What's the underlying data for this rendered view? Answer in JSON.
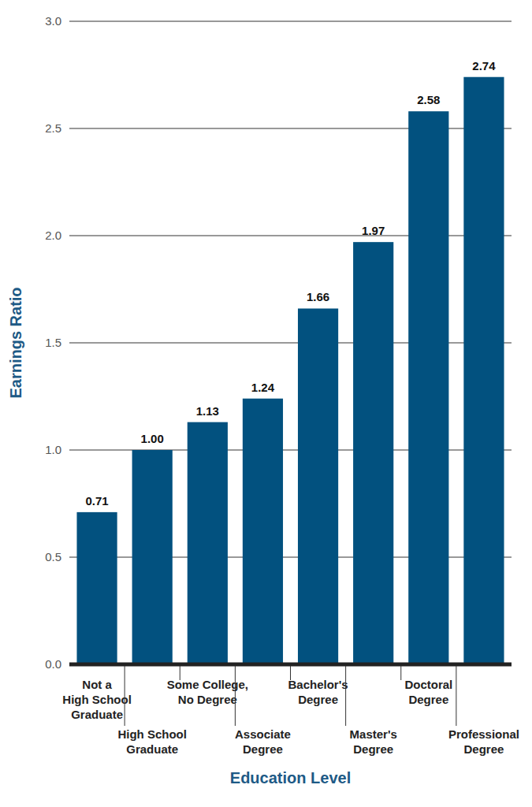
{
  "chart_data": {
    "type": "bar",
    "categories": [
      "Not a\nHigh School\nGraduate",
      "High School\nGraduate",
      "Some College,\nNo Degree",
      "Associate\nDegree",
      "Bachelor's\nDegree",
      "Master's\nDegree",
      "Doctoral\nDegree",
      "Professional\nDegree"
    ],
    "values": [
      0.71,
      1,
      1.13,
      1.24,
      1.66,
      1.97,
      2.58,
      2.74
    ],
    "value_labels": [
      "0.71",
      "1.00",
      "1.13",
      "1.24",
      "1.66",
      "1.97",
      "2.58",
      "2.74"
    ],
    "color": "#02517f",
    "ylim": [
      0,
      3
    ],
    "yticks": [
      {
        "value": 0,
        "label": "0.0"
      },
      0.5,
      {
        "value": 1,
        "label": "1.0"
      },
      1.5,
      {
        "value": 2,
        "label": "2.0"
      },
      2.5,
      {
        "value": 3,
        "label": "3.0"
      }
    ],
    "grid": true,
    "data_labels": true,
    "x_label": "Education Level",
    "y_label": "Earnings Ratio"
  }
}
